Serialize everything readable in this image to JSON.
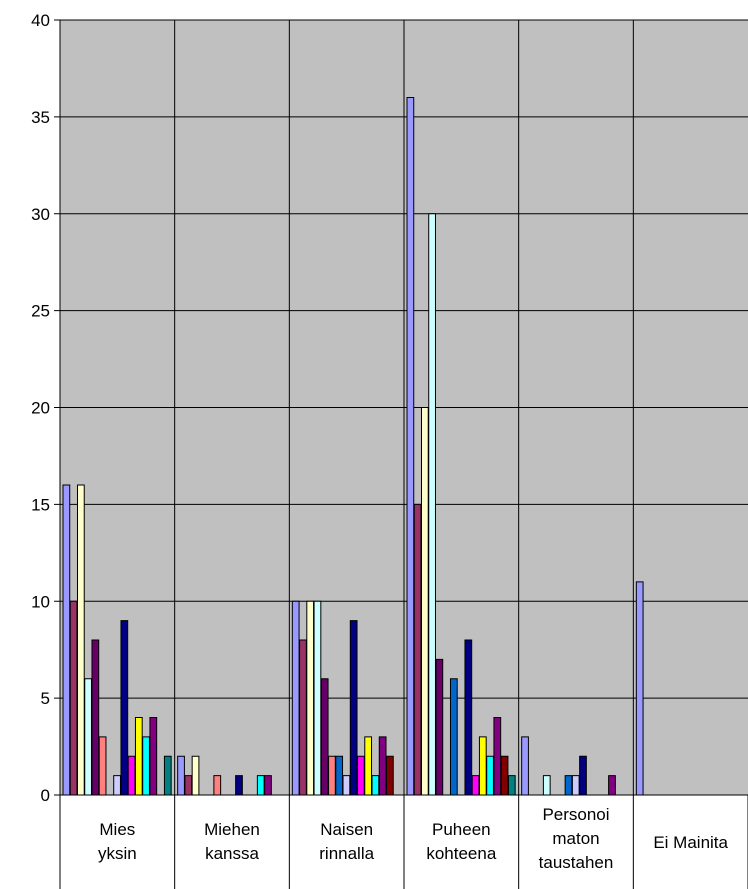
{
  "chart_data": {
    "type": "bar",
    "title": "",
    "xlabel": "",
    "ylabel": "",
    "ylim": [
      0,
      40
    ],
    "yticks": [
      0,
      5,
      10,
      15,
      20,
      25,
      30,
      35,
      40
    ],
    "grid": true,
    "plot_background": "#c0c0c0",
    "categories": [
      [
        "Mies",
        "yksin"
      ],
      [
        "Miehen",
        "kanssa"
      ],
      [
        "Naisen",
        "rinnalla"
      ],
      [
        "Puheen",
        "kohteena"
      ],
      [
        "Personoi",
        "maton",
        "taustahen"
      ],
      [
        "Ei Mainita"
      ]
    ],
    "series": [
      {
        "color": "#9999ff",
        "values": [
          16,
          2,
          10,
          36,
          3,
          11
        ]
      },
      {
        "color": "#993366",
        "values": [
          10,
          1,
          8,
          15,
          0,
          0
        ]
      },
      {
        "color": "#ffffcc",
        "values": [
          16,
          2,
          10,
          20,
          0,
          0
        ]
      },
      {
        "color": "#ccffff",
        "values": [
          6,
          0,
          10,
          30,
          1,
          0
        ]
      },
      {
        "color": "#660066",
        "values": [
          8,
          0,
          6,
          7,
          0,
          0
        ]
      },
      {
        "color": "#ff8080",
        "values": [
          3,
          1,
          2,
          0,
          0,
          0
        ]
      },
      {
        "color": "#0066cc",
        "values": [
          0,
          0,
          2,
          6,
          1,
          0
        ]
      },
      {
        "color": "#ccccff",
        "values": [
          1,
          0,
          1,
          0,
          1,
          0
        ]
      },
      {
        "color": "#000080",
        "values": [
          9,
          1,
          9,
          8,
          2,
          0
        ]
      },
      {
        "color": "#ff00ff",
        "values": [
          2,
          0,
          2,
          1,
          0,
          0
        ]
      },
      {
        "color": "#ffff00",
        "values": [
          4,
          0,
          3,
          3,
          0,
          0
        ]
      },
      {
        "color": "#00ffff",
        "values": [
          3,
          1,
          1,
          2,
          0,
          0
        ]
      },
      {
        "color": "#800080",
        "values": [
          4,
          1,
          3,
          4,
          1,
          0
        ]
      },
      {
        "color": "#800000",
        "values": [
          0,
          0,
          2,
          2,
          0,
          0
        ]
      },
      {
        "color": "#008080",
        "values": [
          2,
          0,
          0,
          1,
          0,
          0
        ]
      }
    ]
  }
}
